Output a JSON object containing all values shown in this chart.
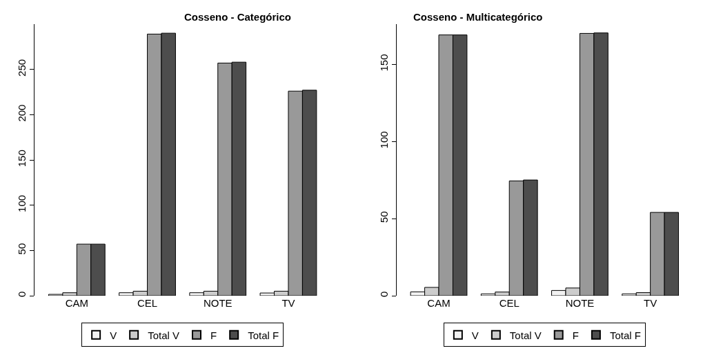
{
  "chart_data": [
    {
      "type": "bar",
      "title": "Cosseno - Categórico",
      "categories": [
        "CAM",
        "CEL",
        "NOTE",
        "TV"
      ],
      "ylim": [
        0,
        300
      ],
      "yticks": [
        0,
        50,
        100,
        150,
        200,
        250
      ],
      "legend": "bottom",
      "series": [
        {
          "name": "V",
          "color": "#f2f2f2",
          "values": [
            1.5,
            3.3,
            3.3,
            3
          ]
        },
        {
          "name": "Total V",
          "color": "#cccccc",
          "values": [
            3.3,
            5,
            5,
            5
          ]
        },
        {
          "name": "F",
          "color": "#999999",
          "values": [
            57,
            289,
            257,
            226
          ]
        },
        {
          "name": "Total F",
          "color": "#4d4d4d",
          "values": [
            57,
            290,
            258,
            227
          ]
        }
      ]
    },
    {
      "type": "bar",
      "title": "Cosseno - Multicategórico",
      "categories": [
        "CAM",
        "CEL",
        "NOTE",
        "TV"
      ],
      "ylim": [
        0,
        176
      ],
      "yticks": [
        0,
        50,
        100,
        150
      ],
      "legend": "bottom",
      "series": [
        {
          "name": "V",
          "color": "#f2f2f2",
          "values": [
            2.5,
            1.2,
            3.4,
            1.2
          ]
        },
        {
          "name": "Total V",
          "color": "#cccccc",
          "values": [
            5.4,
            2.4,
            5,
            2
          ]
        },
        {
          "name": "F",
          "color": "#999999",
          "values": [
            169,
            74.4,
            170,
            54
          ]
        },
        {
          "name": "Total F",
          "color": "#4d4d4d",
          "values": [
            169,
            75,
            170.3,
            54
          ]
        }
      ]
    }
  ]
}
